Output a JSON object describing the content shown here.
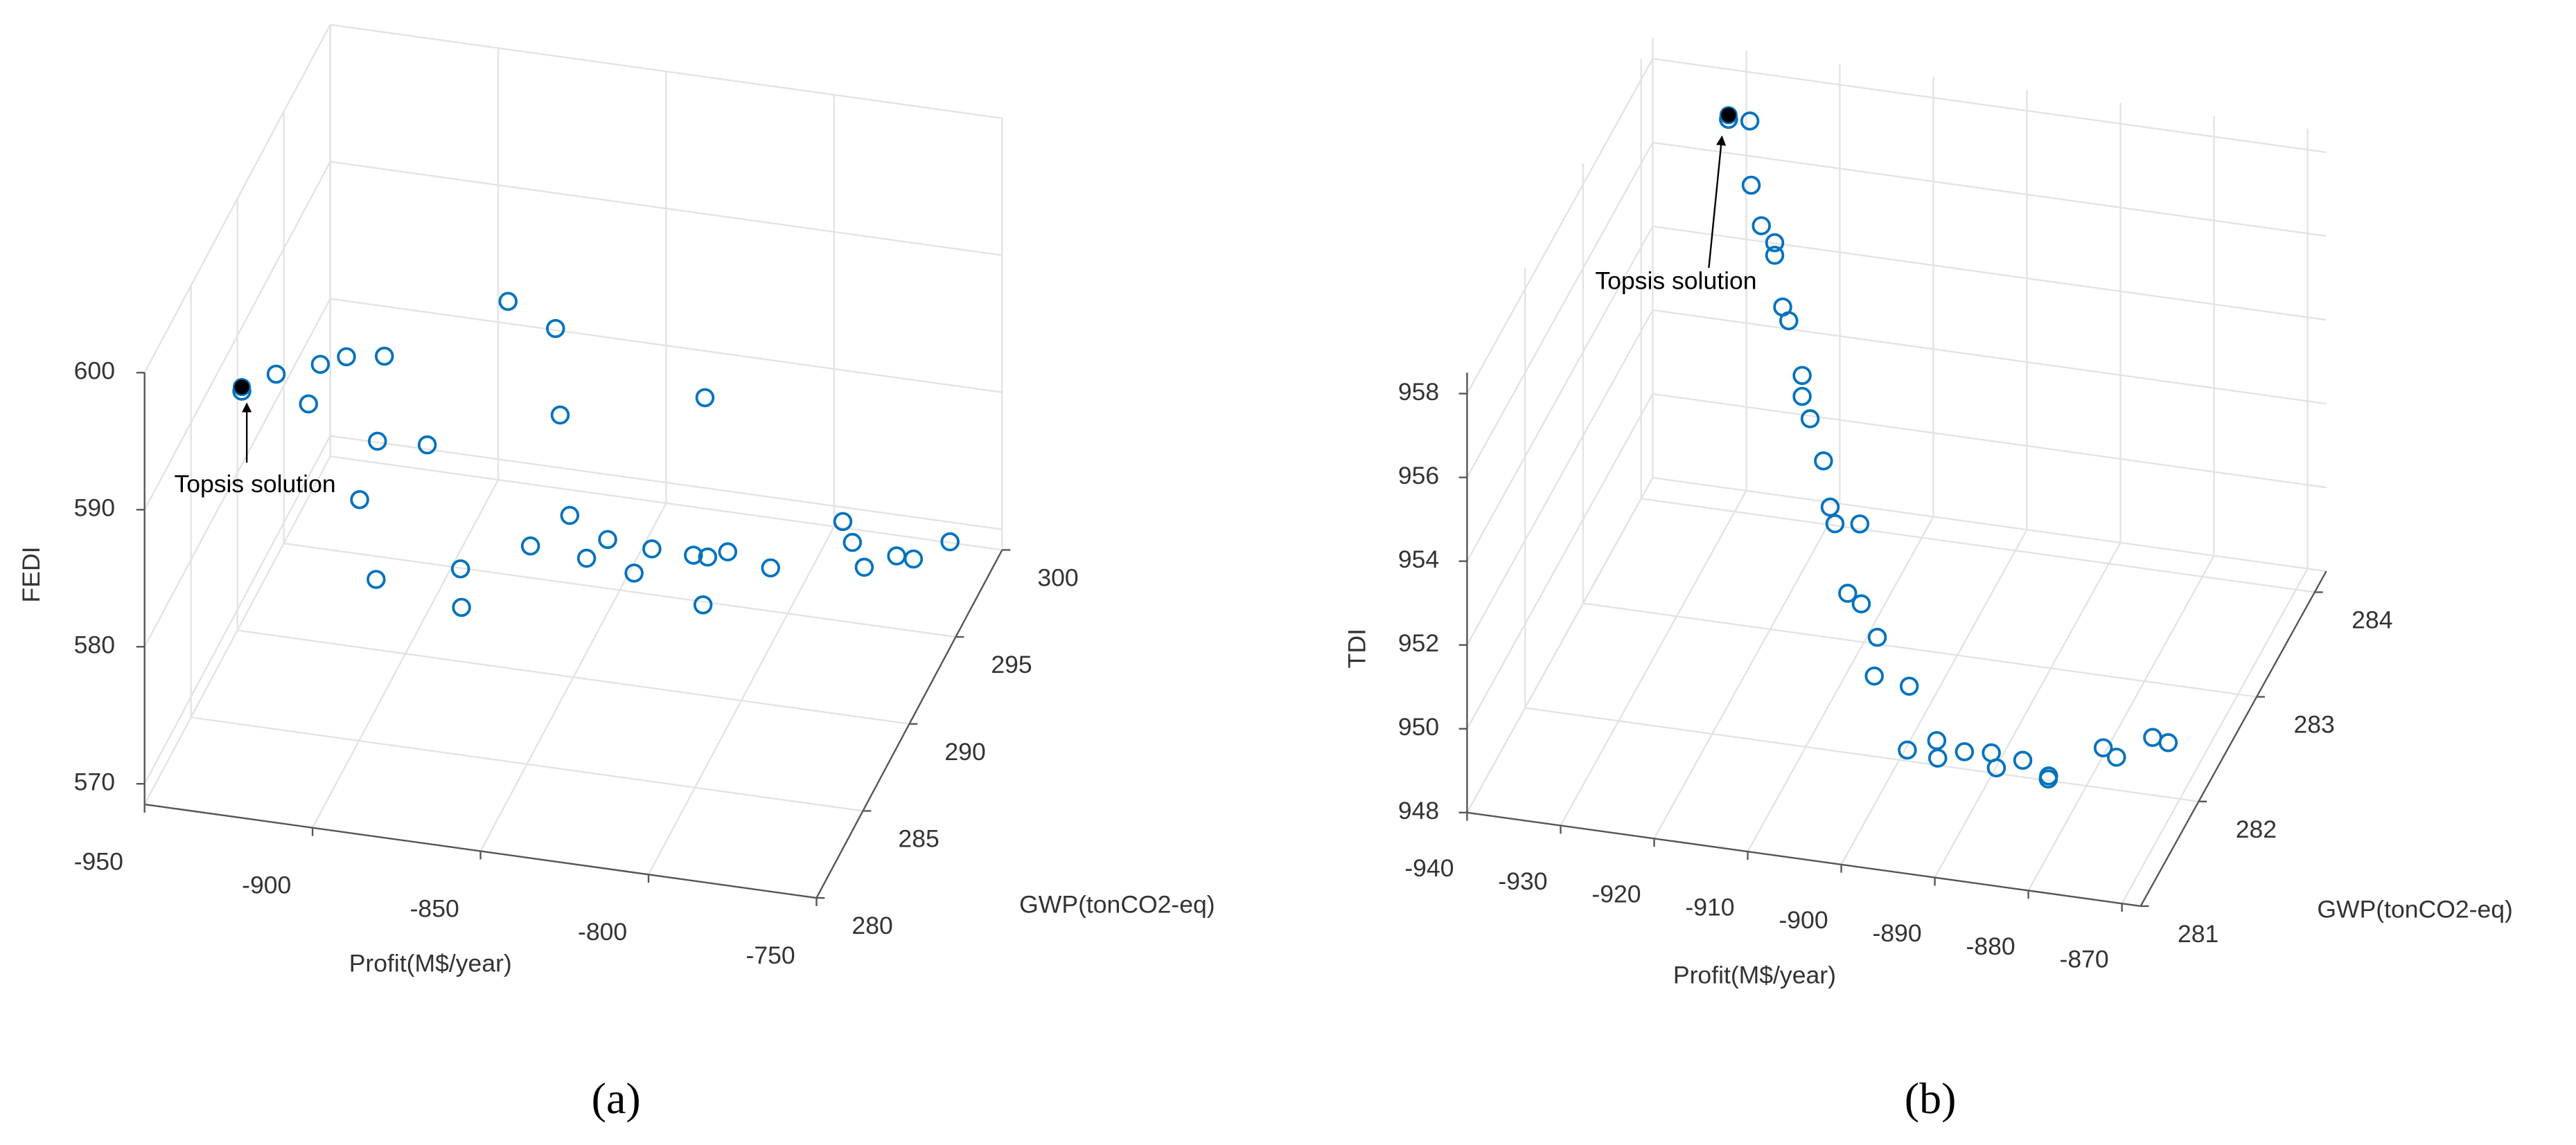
{
  "chart_data": [
    {
      "type": "scatter3d",
      "caption": "(a)",
      "xlabel": "Profit(M$/year)",
      "ylabel": "GWP(tonCO2-eq)",
      "zlabel": "FEDI",
      "xlim": [
        -950,
        -750
      ],
      "ylim": [
        280,
        300
      ],
      "zlim": [
        568.5,
        600
      ],
      "xticks": [
        -950,
        -900,
        -850,
        -800,
        -750
      ],
      "yticks": [
        280,
        285,
        290,
        295,
        300
      ],
      "zticks": [
        570,
        580,
        590,
        600
      ],
      "grid": true,
      "series": [
        {
          "color": "#0072bd",
          "x": [
            -927.4,
            -919.4,
            -911.7,
            -909.0,
            -902.9,
            -894.1,
            -895.6,
            -884.1,
            -899.8,
            -896.0,
            -876.4,
            -876.1,
            -865.3,
            -854.2,
            -853.1,
            -819.4,
            -850.8,
            -860.0,
            -842.0,
            -846.9,
            -835.8,
            -831.6,
            -822.0,
            -818.6,
            -814.0,
            -804.0,
            -819.7,
            -787.2,
            -784.9,
            -782.2,
            -774.5,
            -770.6,
            -762.2
          ],
          "y": [
            282.3,
            283.1,
            283.8,
            284.1,
            284.7,
            285.6,
            285.4,
            286.6,
            285.0,
            285.4,
            287.4,
            287.4,
            288.5,
            289.6,
            289.7,
            293.1,
            289.9,
            289.0,
            290.8,
            290.3,
            291.4,
            291.8,
            292.8,
            293.1,
            293.6,
            294.6,
            293.0,
            296.3,
            296.5,
            296.8,
            297.5,
            297.9,
            298.8
          ],
          "z": [
            596.5,
            597.0,
            594.2,
            596.8,
            596.8,
            596.0,
            590.0,
            588.6,
            586.1,
            579.9,
            578.8,
            576.0,
            597.3,
            594.3,
            587.9,
            586.0,
            580.4,
            579.0,
            577.8,
            576.9,
            574.8,
            576.2,
            574.8,
            574.4,
            574.3,
            572.2,
            571.0,
            574.0,
            572.3,
            570.2,
            570.4,
            569.8,
            570.2
          ]
        }
      ],
      "highlight": {
        "name": "Topsis solution",
        "color": "#000000",
        "x": -927.4,
        "y": 282.3,
        "z": 596.8
      }
    },
    {
      "type": "scatter3d",
      "caption": "(b)",
      "xlabel": "Profit(M$/year)",
      "ylabel": "GWP(tonCO2-eq)",
      "zlabel": "TDI",
      "xlim": [
        -940,
        -868
      ],
      "ylim": [
        281,
        284.2
      ],
      "zlim": [
        948,
        958.5
      ],
      "xticks": [
        -940,
        -930,
        -920,
        -910,
        -900,
        -890,
        -880,
        -870
      ],
      "yticks": [
        281,
        282,
        283,
        284
      ],
      "zticks": [
        948,
        950,
        952,
        954,
        956,
        958
      ],
      "grid": true,
      "series": [
        {
          "color": "#0072bd",
          "x": [
            -929.6,
            -926.7,
            -926.5,
            -925.1,
            -923.3,
            -923.3,
            -922.2,
            -921.3,
            -919.5,
            -919.5,
            -918.4,
            -916.6,
            -915.7,
            -915.0,
            -911.6,
            -910.6,
            -908.9,
            -905.7,
            -904.1,
            -900.3,
            -897.9,
            -895.5,
            -894.9,
            -892.6,
            -890.1,
            -889.0,
            -886.8,
            -883.6,
            -883.7,
            -879.5,
            -877.9,
            -875.4,
            -873.8
          ],
          "y": [
            283.83,
            283.73,
            283.72,
            283.67,
            283.61,
            283.61,
            283.57,
            283.53,
            283.47,
            283.47,
            283.43,
            283.37,
            283.34,
            283.31,
            283.19,
            282.82,
            282.78,
            282.54,
            282.23,
            282.22,
            281.8,
            281.92,
            281.84,
            281.93,
            281.99,
            281.9,
            282.0,
            281.93,
            281.94,
            282.21,
            282.18,
            282.4,
            282.41
          ],
          "z": [
            957.8,
            958.1,
            956.6,
            955.8,
            955.6,
            955.3,
            954.2,
            954.0,
            952.9,
            952.4,
            952.0,
            951.2,
            950.2,
            949.9,
            950.3,
            949.6,
            949.5,
            949.4,
            949.3,
            949.2,
            948.8,
            948.8,
            948.6,
            948.6,
            948.5,
            948.4,
            948.4,
            948.3,
            948.2,
            948.4,
            948.3,
            948.3,
            948.2
          ]
        }
      ],
      "highlight": {
        "name": "Topsis solution",
        "color": "#000000",
        "x": -929.6,
        "y": 283.83,
        "z": 957.9
      }
    }
  ]
}
